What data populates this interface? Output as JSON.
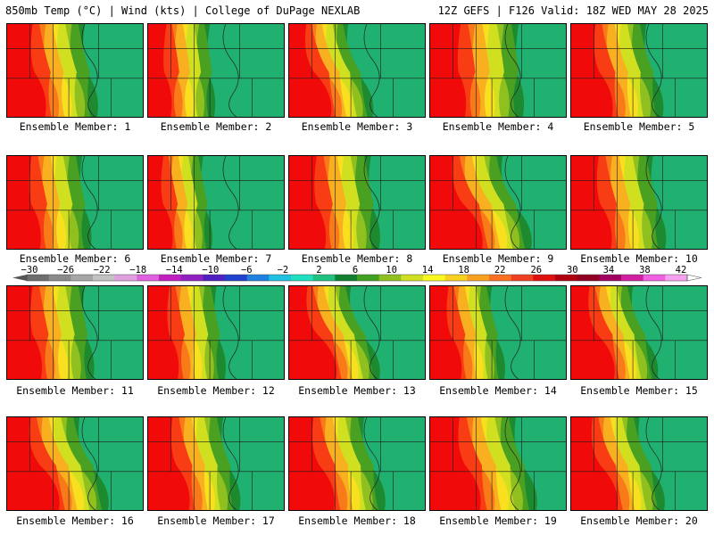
{
  "header": {
    "left": "850mb Temp (°C) | Wind (kts) | College of DuPage NEXLAB",
    "right": "12Z GEFS | F126 Valid: 18Z WED MAY 28 2025"
  },
  "colorbar": {
    "tick_labels": [
      "−30",
      "−26",
      "−22",
      "−18",
      "−14",
      "−10",
      "−6",
      "−2",
      "2",
      "6",
      "10",
      "14",
      "18",
      "22",
      "26",
      "30",
      "34",
      "38",
      "42"
    ],
    "colors": [
      "#6e6e6e",
      "#8a8a8a",
      "#a6a6a6",
      "#c2c2c2",
      "#e0a0e0",
      "#e060e0",
      "#c020c0",
      "#9020c0",
      "#5020c0",
      "#2040d0",
      "#2080e0",
      "#20c0e0",
      "#20e0c0",
      "#20c080",
      "#108030",
      "#40a020",
      "#90c020",
      "#d0e020",
      "#f8f820",
      "#f8d020",
      "#f8a020",
      "#f87020",
      "#f04020",
      "#e01010",
      "#b00010",
      "#900020",
      "#a00060",
      "#d020a0",
      "#f060e0",
      "#f8a0f0"
    ]
  },
  "panels": [
    {
      "label": "Ensemble Member: 1",
      "warm": 0.42,
      "tilt": 0.15
    },
    {
      "label": "Ensemble Member: 2",
      "warm": 0.3,
      "tilt": 0.05
    },
    {
      "label": "Ensemble Member: 3",
      "warm": 0.28,
      "tilt": 0.3
    },
    {
      "label": "Ensemble Member: 4",
      "warm": 0.5,
      "tilt": 0.05
    },
    {
      "label": "Ensemble Member: 5",
      "warm": 0.4,
      "tilt": 0.2
    },
    {
      "label": "Ensemble Member: 6",
      "warm": 0.4,
      "tilt": 0.1
    },
    {
      "label": "Ensemble Member: 7",
      "warm": 0.25,
      "tilt": 0.1
    },
    {
      "label": "Ensemble Member: 8",
      "warm": 0.45,
      "tilt": 0.1
    },
    {
      "label": "Ensemble Member: 9",
      "warm": 0.38,
      "tilt": 0.35
    },
    {
      "label": "Ensemble Member: 10",
      "warm": 0.45,
      "tilt": 0.15
    },
    {
      "label": "Ensemble Member: 11",
      "warm": 0.42,
      "tilt": 0.1
    },
    {
      "label": "Ensemble Member: 12",
      "warm": 0.35,
      "tilt": 0.1
    },
    {
      "label": "Ensemble Member: 13",
      "warm": 0.3,
      "tilt": 0.35
    },
    {
      "label": "Ensemble Member: 14",
      "warm": 0.3,
      "tilt": 0.15
    },
    {
      "label": "Ensemble Member: 15",
      "warm": 0.3,
      "tilt": 0.3
    },
    {
      "label": "Ensemble Member: 16",
      "warm": 0.38,
      "tilt": 0.35
    },
    {
      "label": "Ensemble Member: 17",
      "warm": 0.4,
      "tilt": 0.2
    },
    {
      "label": "Ensemble Member: 18",
      "warm": 0.4,
      "tilt": 0.25
    },
    {
      "label": "Ensemble Member: 19",
      "warm": 0.48,
      "tilt": 0.25
    },
    {
      "label": "Ensemble Member: 20",
      "warm": 0.35,
      "tilt": 0.3
    }
  ]
}
